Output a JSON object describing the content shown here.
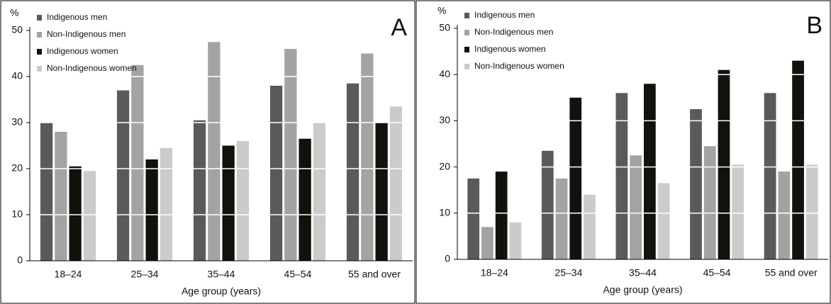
{
  "chart_data": [
    {
      "type": "bar",
      "label": "A",
      "y_label": "%",
      "x_label": "Age group (years)",
      "categories": [
        "18–24",
        "25–34",
        "35–44",
        "45–54",
        "55 and over"
      ],
      "series": [
        {
          "name": "Indigenous men",
          "color": "#5a5a5a",
          "values": [
            30,
            37,
            30.5,
            38,
            38.5
          ]
        },
        {
          "name": "Non-Indigenous men",
          "color": "#a3a3a3",
          "values": [
            28,
            42.5,
            47.5,
            46,
            45
          ]
        },
        {
          "name": "Indigenous women",
          "color": "#10130c",
          "values": [
            20.5,
            22,
            25,
            26.5,
            30
          ]
        },
        {
          "name": "Non-Indigenous women",
          "color": "#cbcbcb",
          "values": [
            19.5,
            24.5,
            26,
            30,
            33.5
          ]
        }
      ],
      "ylim": [
        0,
        50
      ],
      "yticks": [
        0,
        10,
        20,
        30,
        40,
        50
      ],
      "grid": true,
      "legend": "top-left"
    },
    {
      "type": "bar",
      "label": "B",
      "y_label": "%",
      "x_label": "Age group (years)",
      "categories": [
        "18–24",
        "25–34",
        "35–44",
        "45–54",
        "55 and over"
      ],
      "series": [
        {
          "name": "Indigenous men",
          "color": "#5a5a5a",
          "values": [
            17.5,
            23.5,
            36,
            32.5,
            36
          ]
        },
        {
          "name": "Non-Indigenous men",
          "color": "#a3a3a3",
          "values": [
            7,
            17.5,
            22.5,
            24.5,
            19
          ]
        },
        {
          "name": "Indigenous women",
          "color": "#10130c",
          "values": [
            19,
            35,
            38,
            41,
            43
          ]
        },
        {
          "name": "Non-Indigenous women",
          "color": "#cbcbcb",
          "values": [
            8,
            14,
            16.5,
            20.5,
            20.5
          ]
        }
      ],
      "ylim": [
        0,
        50
      ],
      "yticks": [
        0,
        10,
        20,
        30,
        40,
        50
      ],
      "grid": true,
      "legend": "top-left"
    }
  ]
}
